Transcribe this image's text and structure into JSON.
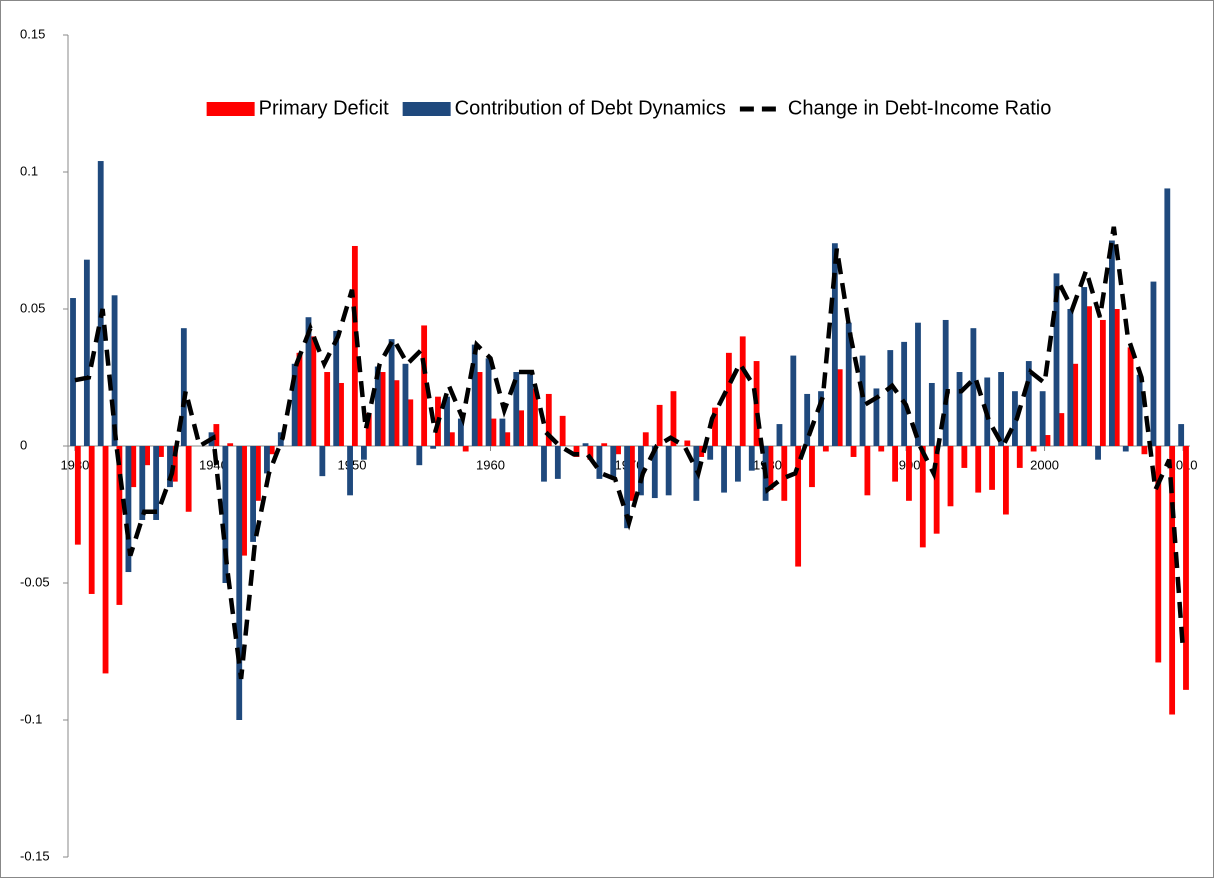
{
  "chart_data": {
    "type": "bar",
    "x": [
      1930,
      1931,
      1932,
      1933,
      1934,
      1935,
      1936,
      1937,
      1938,
      1939,
      1940,
      1941,
      1942,
      1943,
      1944,
      1945,
      1946,
      1947,
      1948,
      1949,
      1950,
      1951,
      1952,
      1953,
      1954,
      1955,
      1956,
      1957,
      1958,
      1959,
      1960,
      1961,
      1962,
      1963,
      1964,
      1965,
      1966,
      1967,
      1968,
      1969,
      1970,
      1971,
      1972,
      1973,
      1974,
      1975,
      1976,
      1977,
      1978,
      1979,
      1980,
      1981,
      1982,
      1983,
      1984,
      1985,
      1986,
      1987,
      1988,
      1989,
      1990,
      1991,
      1992,
      1993,
      1994,
      1995,
      1996,
      1997,
      1998,
      1999,
      2000,
      2001,
      2002,
      2003,
      2004,
      2005,
      2006,
      2007,
      2008,
      2009,
      2010
    ],
    "series": [
      {
        "name": "Primary Deficit",
        "type": "bar",
        "color": "#ff0000",
        "values": [
          -0.036,
          -0.054,
          -0.083,
          -0.058,
          -0.015,
          -0.007,
          -0.004,
          -0.013,
          -0.024,
          0.0,
          0.008,
          0.001,
          -0.04,
          -0.02,
          -0.003,
          0.0,
          0.034,
          0.04,
          0.027,
          0.023,
          0.073,
          0.012,
          0.027,
          0.024,
          0.017,
          0.044,
          0.018,
          0.005,
          -0.002,
          0.027,
          0.01,
          0.005,
          0.013,
          0.021,
          0.019,
          0.011,
          -0.004,
          -0.005,
          0.001,
          -0.003,
          -0.02,
          0.005,
          0.015,
          0.02,
          0.002,
          -0.004,
          0.014,
          0.034,
          0.04,
          0.031,
          -0.016,
          -0.02,
          -0.044,
          -0.015,
          -0.002,
          0.028,
          -0.004,
          -0.018,
          -0.002,
          -0.013,
          -0.02,
          -0.037,
          -0.032,
          -0.022,
          -0.008,
          -0.017,
          -0.016,
          -0.025,
          -0.008,
          -0.002,
          0.004,
          0.012,
          0.03,
          0.051,
          0.046,
          0.05,
          0.036,
          -0.003,
          -0.079,
          -0.098,
          -0.089
        ]
      },
      {
        "name": "Contribution of Debt Dynamics",
        "type": "bar",
        "color": "#1f497d",
        "values": [
          0.054,
          0.068,
          0.104,
          0.055,
          -0.046,
          -0.027,
          -0.027,
          -0.015,
          0.043,
          0.0,
          0.005,
          -0.05,
          -0.1,
          -0.035,
          -0.01,
          0.005,
          0.03,
          0.047,
          -0.011,
          0.042,
          -0.018,
          -0.005,
          0.029,
          0.039,
          0.03,
          -0.007,
          -0.001,
          0.018,
          0.01,
          0.037,
          0.032,
          0.01,
          0.027,
          0.027,
          -0.013,
          -0.012,
          0.0,
          0.001,
          -0.012,
          -0.012,
          -0.03,
          -0.018,
          -0.019,
          -0.018,
          0.0,
          -0.02,
          -0.005,
          -0.017,
          -0.013,
          -0.009,
          -0.02,
          0.008,
          0.033,
          0.019,
          0.02,
          0.074,
          0.045,
          0.033,
          0.021,
          0.035,
          0.038,
          0.045,
          0.023,
          0.046,
          0.027,
          0.043,
          0.025,
          0.027,
          0.02,
          0.031,
          0.02,
          0.063,
          0.05,
          0.058,
          -0.005,
          0.075,
          -0.002,
          0.026,
          0.06,
          0.094,
          0.008
        ]
      },
      {
        "name": "Change in Debt-Income Ratio",
        "type": "line",
        "color": "#000000",
        "values": [
          0.024,
          0.025,
          0.05,
          0.0,
          -0.04,
          -0.024,
          -0.024,
          -0.01,
          0.02,
          0.0,
          0.003,
          -0.045,
          -0.085,
          -0.035,
          -0.01,
          0.003,
          0.03,
          0.043,
          0.03,
          0.04,
          0.057,
          0.006,
          0.03,
          0.039,
          0.03,
          0.035,
          0.005,
          0.022,
          0.01,
          0.037,
          0.032,
          0.013,
          0.027,
          0.027,
          0.005,
          0.0,
          -0.003,
          -0.003,
          -0.01,
          -0.012,
          -0.028,
          -0.01,
          0.0,
          0.003,
          0.0,
          -0.01,
          0.01,
          0.02,
          0.03,
          0.022,
          -0.016,
          -0.012,
          -0.01,
          0.004,
          0.018,
          0.072,
          0.04,
          0.015,
          0.018,
          0.022,
          0.015,
          0.0,
          -0.01,
          0.02,
          0.02,
          0.025,
          0.009,
          0.0,
          0.01,
          0.027,
          0.023,
          0.06,
          0.05,
          0.064,
          0.047,
          0.08,
          0.04,
          0.025,
          -0.016,
          -0.005,
          -0.075
        ]
      }
    ],
    "xlim": [
      1929.5,
      2010.5
    ],
    "xticks": [
      1930,
      1940,
      1950,
      1960,
      1970,
      1980,
      1990,
      2000,
      2010
    ],
    "ylim": [
      -0.15,
      0.15
    ],
    "yticks": [
      0.15,
      0.1,
      0.05,
      0,
      -0.05,
      -0.1,
      -0.15
    ],
    "legend": "top"
  }
}
